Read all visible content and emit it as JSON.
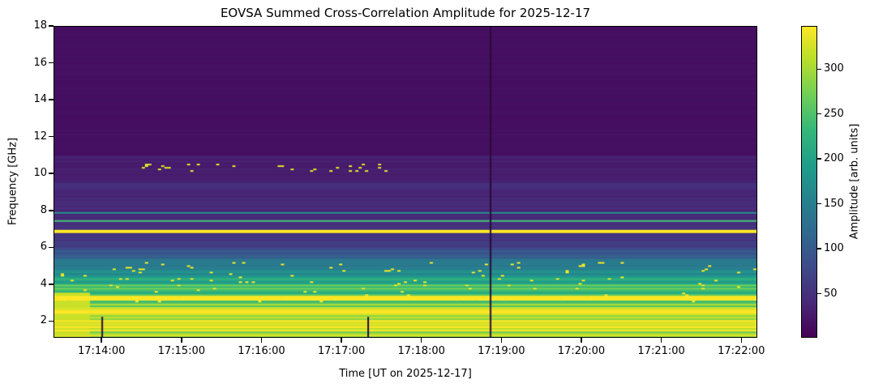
{
  "chart_data": {
    "type": "heatmap",
    "title": "EOVSA Summed Cross-Correlation Amplitude for 2025-12-17",
    "xlabel": "Time [UT on 2025-12-17]",
    "ylabel": "Frequency [GHz]",
    "colorbar_label": "Amplitude [arb. units]",
    "colormap": "viridis",
    "xlim": [
      "17:13:24",
      "17:22:12"
    ],
    "ylim": [
      1.1,
      18
    ],
    "clim": [
      1,
      348
    ],
    "x_ticks": [
      "17:14:00",
      "17:15:00",
      "17:16:00",
      "17:17:00",
      "17:18:00",
      "17:19:00",
      "17:20:00",
      "17:21:00",
      "17:22:00"
    ],
    "y_ticks": [
      2,
      4,
      6,
      8,
      10,
      12,
      14,
      16,
      18
    ],
    "colorbar_ticks": [
      50,
      100,
      150,
      200,
      250,
      300
    ],
    "frequency_profile": [
      {
        "f_low": 1.1,
        "f_high": 2.8,
        "amplitude": 325
      },
      {
        "f_low": 2.8,
        "f_high": 3.0,
        "amplitude": 290
      },
      {
        "f_low": 3.0,
        "f_high": 3.1,
        "amplitude": 200
      },
      {
        "f_low": 3.1,
        "f_high": 3.4,
        "amplitude": 335
      },
      {
        "f_low": 3.4,
        "f_high": 3.6,
        "amplitude": 230
      },
      {
        "f_low": 3.6,
        "f_high": 4.0,
        "amplitude": 250
      },
      {
        "f_low": 4.0,
        "f_high": 4.5,
        "amplitude": 200
      },
      {
        "f_low": 4.5,
        "f_high": 5.0,
        "amplitude": 160
      },
      {
        "f_low": 5.0,
        "f_high": 5.5,
        "amplitude": 125
      },
      {
        "f_low": 5.5,
        "f_high": 6.0,
        "amplitude": 95
      },
      {
        "f_low": 6.0,
        "f_high": 6.85,
        "amplitude": 60
      },
      {
        "f_low": 6.85,
        "f_high": 6.95,
        "amplitude": 345
      },
      {
        "f_low": 6.95,
        "f_high": 7.45,
        "amplitude": 50
      },
      {
        "f_low": 7.45,
        "f_high": 7.55,
        "amplitude": 230
      },
      {
        "f_low": 7.55,
        "f_high": 7.85,
        "amplitude": 45
      },
      {
        "f_low": 7.85,
        "f_high": 7.95,
        "amplitude": 150
      },
      {
        "f_low": 7.95,
        "f_high": 9.5,
        "amplitude": 42
      },
      {
        "f_low": 9.5,
        "f_high": 11.0,
        "amplitude": 30
      },
      {
        "f_low": 11.0,
        "f_high": 18.0,
        "amplitude": 15
      }
    ],
    "dropouts": [
      {
        "time": "17:14:00",
        "f_low": 1.1,
        "f_high": 2.2
      },
      {
        "time": "17:17:20",
        "f_low": 1.1,
        "f_high": 2.2
      },
      {
        "time": "17:18:52",
        "f_low": 1.1,
        "f_high": 18
      }
    ]
  }
}
